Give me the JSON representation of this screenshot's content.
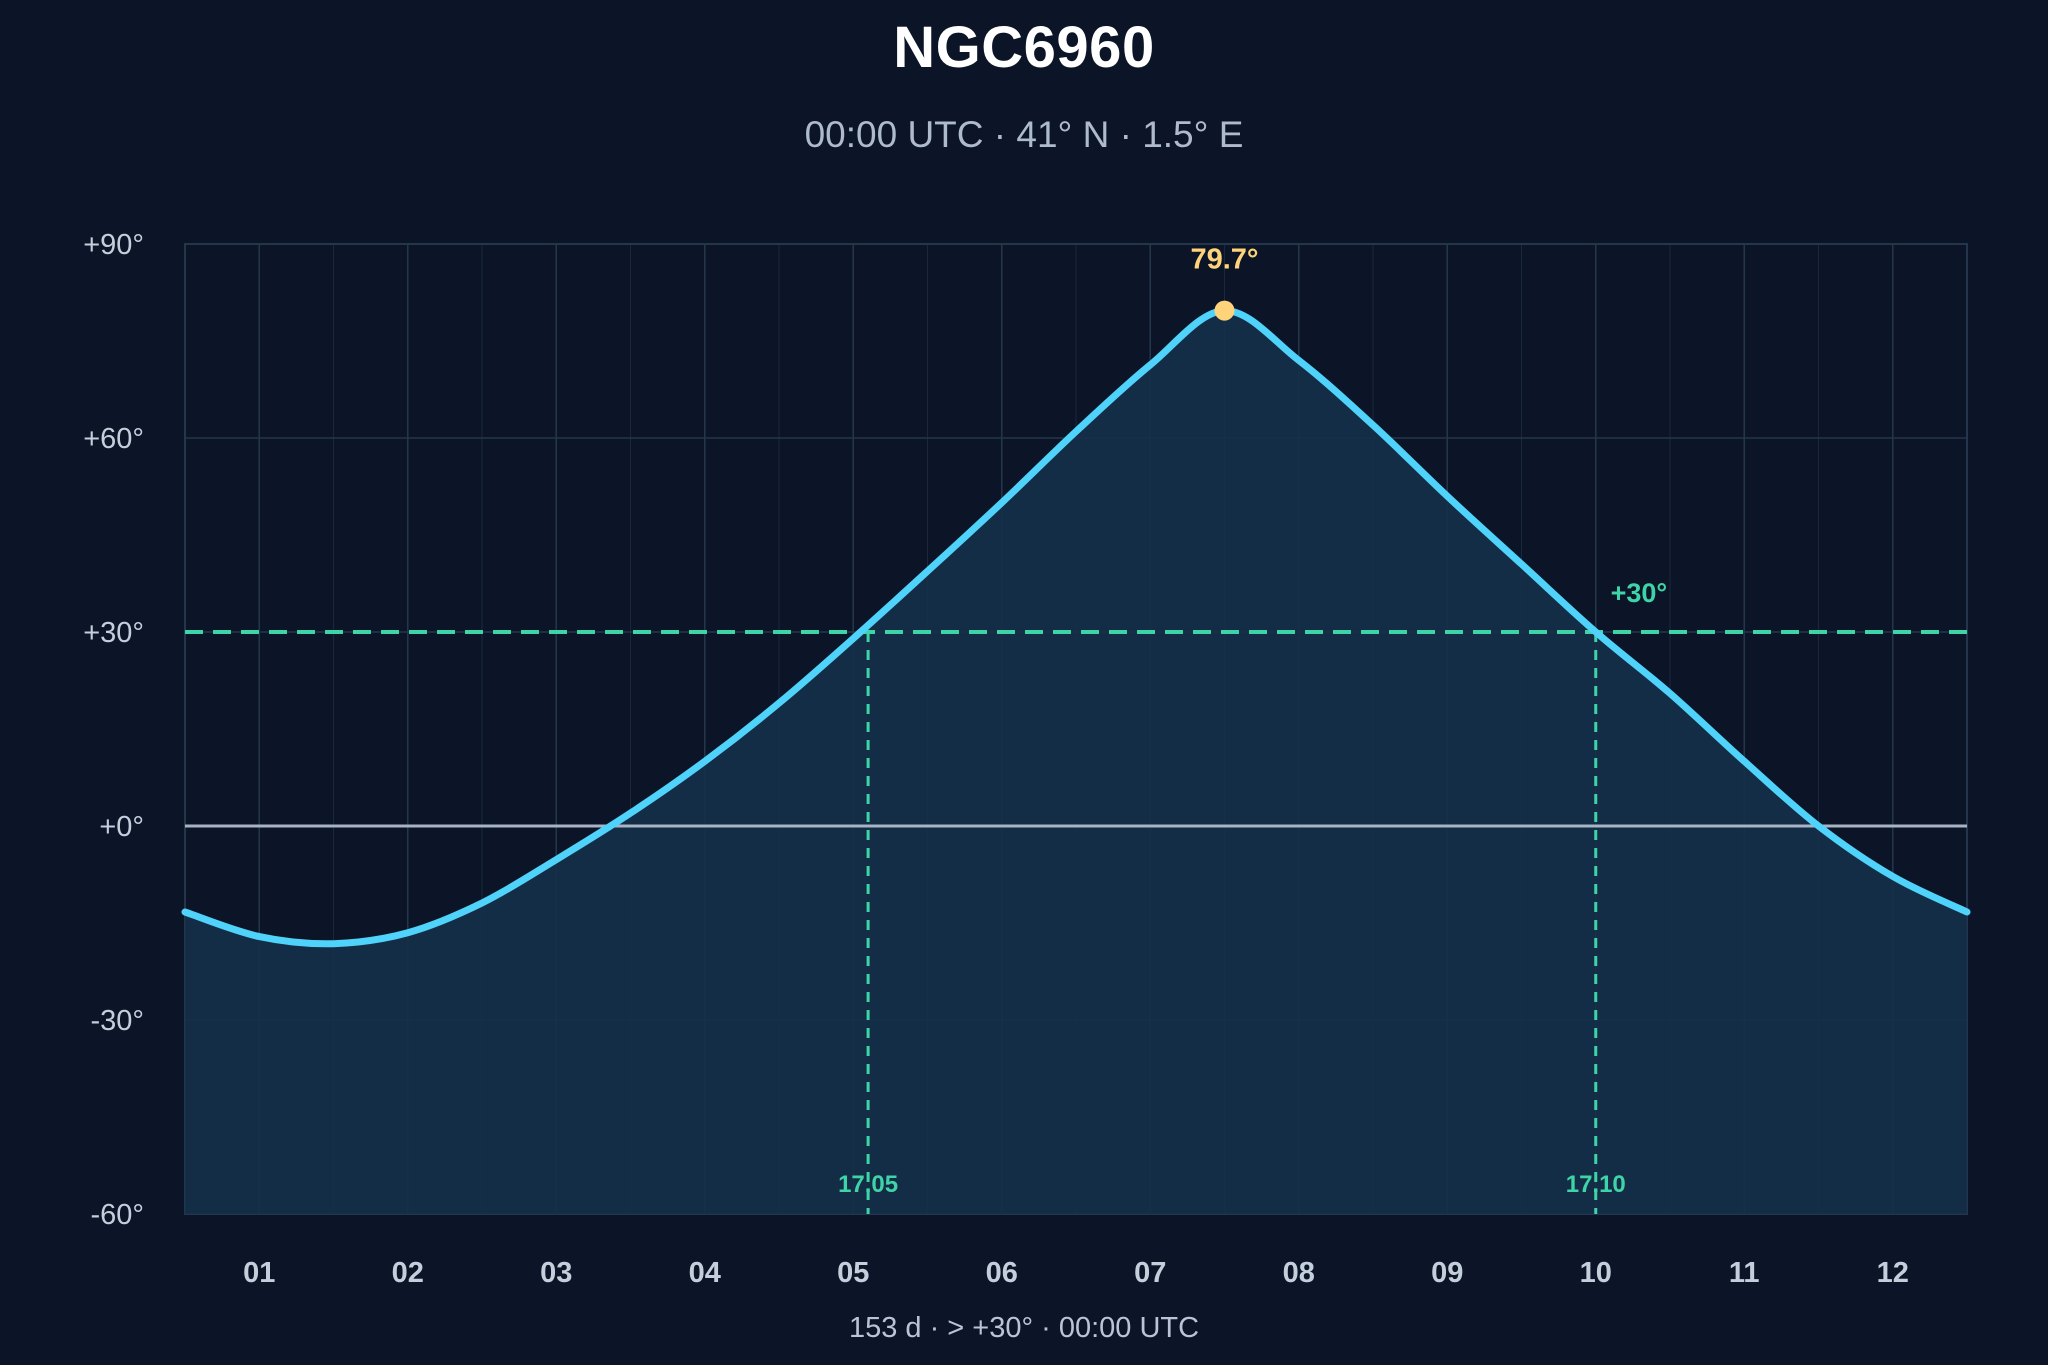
{
  "header": {
    "title": "NGC6960",
    "subtitle": "00:00 UTC · 41° N · 1.5° E"
  },
  "footer": {
    "summary": "153 d  ·  > +30°  ·  00:00 UTC"
  },
  "colors": {
    "background": "#0b1527",
    "curve": "#4fd3fb",
    "area_fill": "#15304a",
    "threshold": "#3fd4a8",
    "peak": "#ffd37a",
    "horizon": "#a7b4c4",
    "grid": "#24364c"
  },
  "chart_data": {
    "type": "area",
    "title": "NGC6960",
    "subtitle": "00:00 UTC · 41° N · 1.5° E",
    "xlabel": "",
    "ylabel": "",
    "categories": [
      "01",
      "02",
      "03",
      "04",
      "05",
      "06",
      "07",
      "08",
      "09",
      "10",
      "11",
      "12"
    ],
    "xlim": [
      0.5,
      12.5
    ],
    "ylim": [
      -60,
      90
    ],
    "yticks": [
      90,
      60,
      30,
      0,
      -30,
      -60
    ],
    "ytick_labels": [
      "+90°",
      "+60°",
      "+30°",
      "+0°",
      "-30°",
      "-60°"
    ],
    "grid": true,
    "series": [
      {
        "x": [
          0.5,
          1.0,
          1.5,
          2.0,
          2.5,
          3.0,
          3.5,
          4.0,
          4.5,
          5.0,
          5.5,
          6.0,
          6.5,
          7.0,
          7.5,
          8.0,
          8.5,
          9.0,
          9.5,
          10.0,
          10.5,
          11.0,
          11.5,
          12.0,
          12.5
        ],
        "values": [
          -13.3,
          -17.1,
          -18.2,
          -16.5,
          -11.9,
          -5.2,
          2.0,
          10.0,
          19.0,
          29.0,
          39.4,
          50.0,
          61.0,
          71.3,
          79.7,
          72.0,
          62.0,
          51.0,
          40.5,
          30.0,
          20.5,
          10.0,
          0.0,
          -7.8,
          -13.3
        ]
      }
    ],
    "threshold": {
      "value": 30,
      "label": "+30°"
    },
    "peak": {
      "x": 7.5,
      "value": 79.7,
      "label": "79.7°"
    },
    "crossings": [
      {
        "x": 5.1,
        "label": "17.05"
      },
      {
        "x": 10.0,
        "label": "17.10"
      }
    ]
  }
}
